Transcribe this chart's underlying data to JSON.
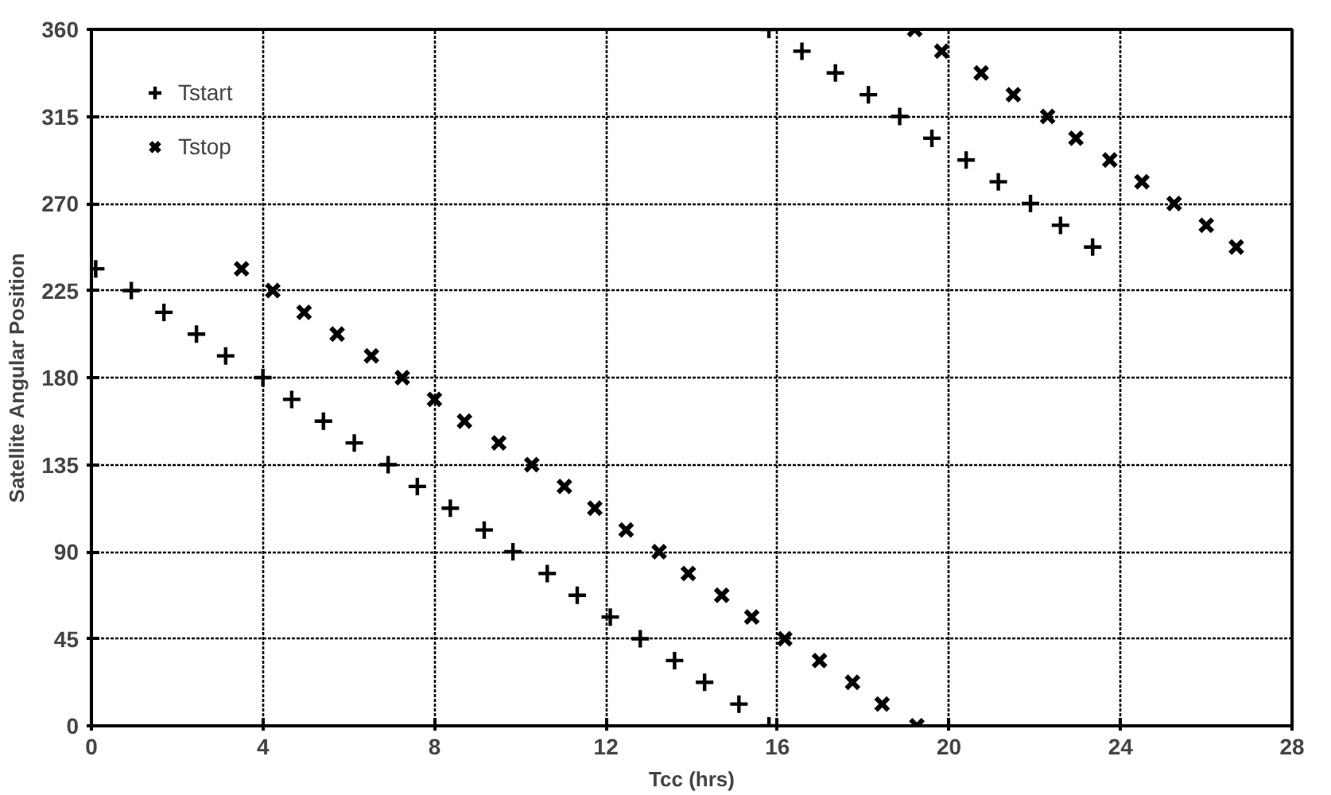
{
  "chart_data": {
    "type": "scatter",
    "xlabel": "Tcc (hrs)",
    "ylabel": "Satellite Angular Position",
    "xlim": [
      0,
      28
    ],
    "xticks": [
      0,
      4,
      8,
      12,
      16,
      20,
      24,
      28
    ],
    "ylim": [
      0,
      360
    ],
    "yticks": [
      0,
      45,
      90,
      135,
      180,
      225,
      270,
      315,
      360
    ],
    "grid": true,
    "legend": "top left",
    "series": [
      {
        "name": "Tstart",
        "color": "#000000",
        "marker": "cross",
        "x": [
          0.1,
          0.93,
          1.69,
          2.45,
          3.13,
          4,
          4.67,
          5.41,
          6.13,
          6.92,
          7.6,
          8.37,
          9.16,
          9.83,
          10.63,
          11.33,
          12.1,
          12.8,
          13.6,
          14.3,
          15.1,
          15.8,
          15.8,
          16.57,
          17.35,
          18.12,
          18.85,
          19.6,
          20.4,
          21.15,
          21.9,
          22.6,
          23.35
        ],
        "values": [
          236.25,
          225,
          213.75,
          202.5,
          191.25,
          180,
          168.75,
          157.5,
          146.25,
          135,
          123.75,
          112.5,
          101.25,
          90,
          78.75,
          67.5,
          56.25,
          45,
          33.75,
          22.5,
          11.25,
          0,
          360,
          348.75,
          337.5,
          326.25,
          315,
          303.75,
          292.5,
          281.25,
          270,
          258.75,
          247.5
        ]
      },
      {
        "name": "Tstop",
        "color": "#000000",
        "marker": "x",
        "x": [
          3.5,
          4.23,
          4.96,
          5.73,
          6.53,
          7.25,
          8,
          8.7,
          9.5,
          10.27,
          11.03,
          11.74,
          12.47,
          13.24,
          13.92,
          14.7,
          15.4,
          16.17,
          16.98,
          17.75,
          18.44,
          19.25,
          19.2,
          19.83,
          20.75,
          21.5,
          22.3,
          22.96,
          23.75,
          24.5,
          25.25,
          26,
          26.7
        ],
        "values": [
          236.25,
          225,
          213.75,
          202.5,
          191.25,
          180,
          168.75,
          157.5,
          146.25,
          135,
          123.75,
          112.5,
          101.25,
          90,
          78.75,
          67.5,
          56.25,
          45,
          33.75,
          22.5,
          11.25,
          0,
          360,
          348.75,
          337.5,
          326.25,
          315,
          303.75,
          292.5,
          281.25,
          270,
          258.75,
          247.5
        ]
      }
    ]
  }
}
